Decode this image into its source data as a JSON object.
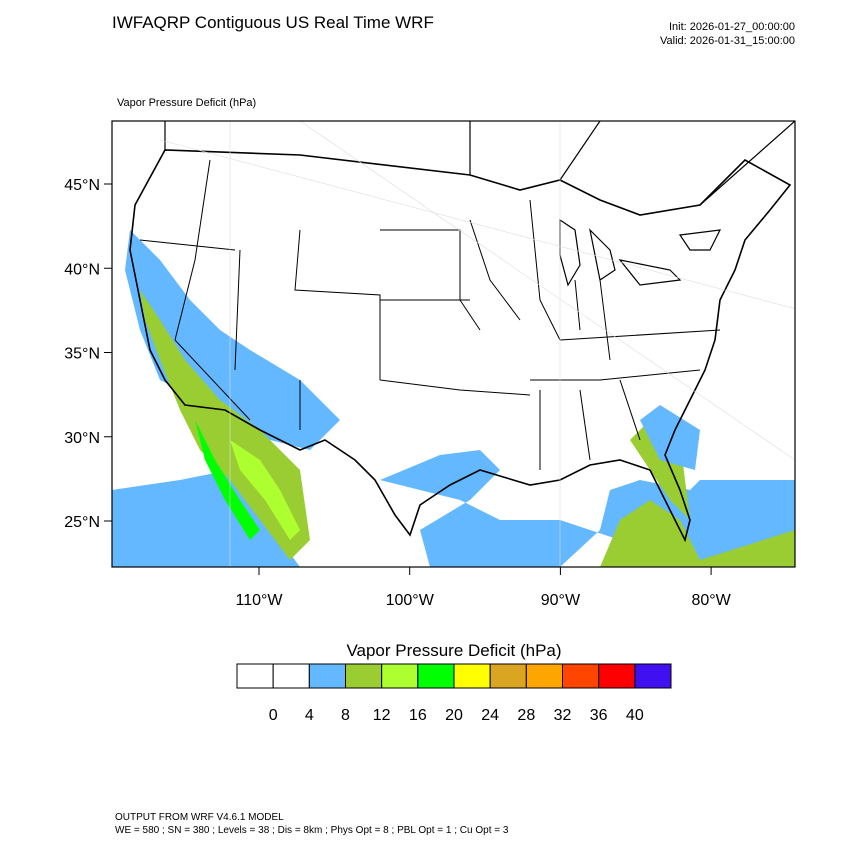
{
  "header": {
    "title": "IWFAQRP Contiguous US Real Time WRF",
    "init": "Init: 2026-01-27_00:00:00",
    "valid": "Valid: 2026-01-31_15:00:00"
  },
  "map": {
    "field_label": "Vapor Pressure Deficit   (hPa)",
    "lat_labels": [
      "45°N",
      "40°N",
      "35°N",
      "30°N",
      "25°N"
    ],
    "lon_labels": [
      "110°W",
      "100°W",
      "90°W",
      "80°W"
    ]
  },
  "colorbar": {
    "title": "Vapor Pressure Deficit  (hPa)",
    "colors": [
      "#ffffff",
      "#ffffff",
      "#63b8ff",
      "#9acd32",
      "#adff2f",
      "#00ff00",
      "#ffff00",
      "#daa520",
      "#ffa500",
      "#ff4500",
      "#ff0000",
      "#4010f0"
    ],
    "labels": [
      0,
      4,
      8,
      12,
      16,
      20,
      24,
      28,
      32,
      36,
      40
    ]
  },
  "footer": {
    "lines": [
      "OUTPUT FROM WRF V4.6.1 MODEL",
      "WE = 580 ; SN = 380 ; Levels = 38 ; Dis = 8km ; Phys Opt = 8 ; PBL Opt = 1 ; Cu Opt = 3"
    ]
  }
}
